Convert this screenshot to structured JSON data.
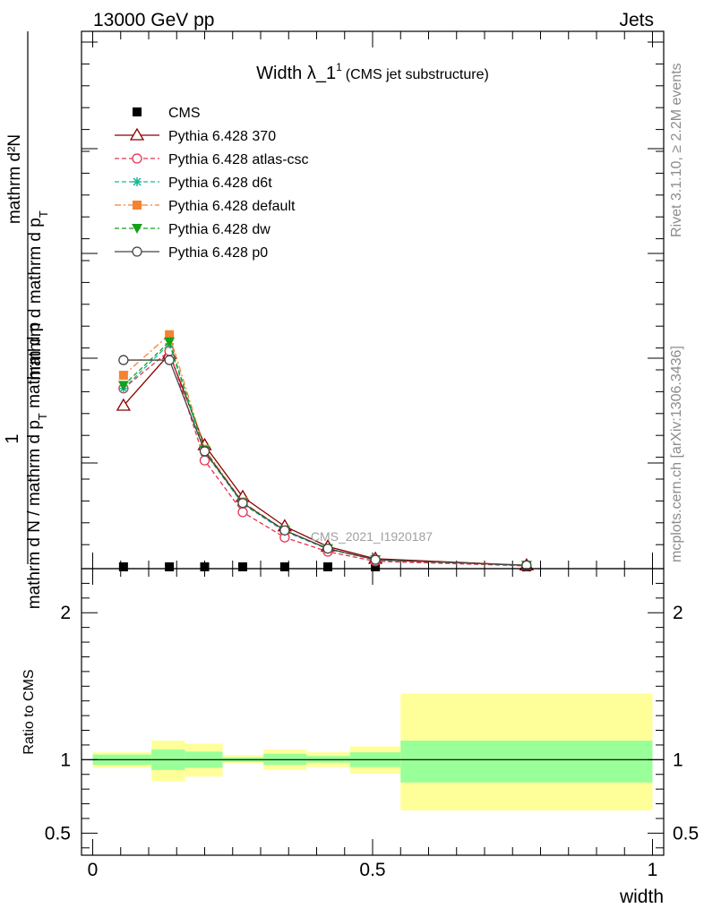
{
  "header": {
    "left": "13000 GeV pp",
    "right": "Jets"
  },
  "side_labels": {
    "rivet": "Rivet 3.1.10, ≥ 2.2M events",
    "mcplots": "mcplots.cern.ch [arXiv:1306.3436]"
  },
  "watermark": "CMS_2021_I1920187",
  "main_ylabel": {
    "numerator": "1",
    "numerator_note": "mathrm d²N",
    "denominator": "mathrm d N / mathrm d p",
    "denominator_sub": "T",
    "denominator_tail": " mathrm d p",
    "upper_fraction_note": "mathrm d p",
    "upper_fraction_sub": "T",
    "upper_fraction_tail": "mathrm d"
  },
  "ratio_ylabel": "Ratio to CMS",
  "xlabel": "width",
  "chart_data": [
    {
      "type": "line",
      "title": "Width λ_1",
      "title_sup": "1",
      "title_sub": "(CMS jet substructure)",
      "xlim": [
        -0.02,
        1.02
      ],
      "ylim": [
        0,
        1
      ],
      "x_ticks": [
        "0",
        "0.5",
        "1"
      ],
      "legend_position": "top-left",
      "x": [
        0.055,
        0.137,
        0.2,
        0.268,
        0.343,
        0.42,
        0.505,
        0.775
      ],
      "series": [
        {
          "name": "CMS",
          "marker": "square",
          "color": "#000000",
          "values": [
            0.0,
            0.0,
            0.0,
            0.0,
            0.0,
            0.0,
            0.0,
            0.0
          ]
        },
        {
          "name": "Pythia 6.428 370",
          "marker": "triangle-open",
          "color": "#8b0000",
          "dash": "solid",
          "values": [
            0.318,
            0.42,
            0.24,
            0.138,
            0.08,
            0.04,
            0.016,
            0.003
          ]
        },
        {
          "name": "Pythia 6.428 atlas-csc",
          "marker": "circle-open",
          "color": "#e8304f",
          "dash": "dashed",
          "values": [
            0.352,
            0.426,
            0.21,
            0.108,
            0.058,
            0.03,
            0.011,
            0.002
          ]
        },
        {
          "name": "Pythia 6.428 d6t",
          "marker": "star",
          "color": "#19b69b",
          "dash": "dashed",
          "values": [
            0.352,
            0.44,
            0.226,
            0.124,
            0.07,
            0.035,
            0.014,
            0.003
          ]
        },
        {
          "name": "Pythia 6.428 default",
          "marker": "square",
          "color": "#f58231",
          "dash": "dashdot",
          "values": [
            0.378,
            0.458,
            0.232,
            0.128,
            0.072,
            0.036,
            0.014,
            0.003
          ]
        },
        {
          "name": "Pythia 6.428 dw",
          "marker": "triangle-down",
          "color": "#18a018",
          "dash": "dashed",
          "values": [
            0.358,
            0.444,
            0.23,
            0.126,
            0.072,
            0.036,
            0.014,
            0.003
          ]
        },
        {
          "name": "Pythia 6.428 p0",
          "marker": "circle-open",
          "color": "#444444",
          "dash": "solid",
          "values": [
            0.408,
            0.408,
            0.228,
            0.126,
            0.072,
            0.036,
            0.014,
            0.003
          ]
        }
      ]
    },
    {
      "type": "area",
      "ylabel": "Ratio to CMS",
      "xlabel": "width",
      "xlim": [
        -0.02,
        1.02
      ],
      "ylim": [
        0.35,
        2.3
      ],
      "x_ticks": [
        "0",
        "0.5",
        "1"
      ],
      "y_ticks": [
        "0.5",
        "1",
        "2"
      ],
      "reference_line": 1,
      "bins": [
        {
          "x0": 0.0,
          "x1": 0.105,
          "stat_lo": 0.965,
          "stat_hi": 1.035,
          "tot_lo": 0.945,
          "tot_hi": 1.05
        },
        {
          "x0": 0.105,
          "x1": 0.165,
          "stat_lo": 0.93,
          "stat_hi": 1.07,
          "tot_lo": 0.855,
          "tot_hi": 1.13
        },
        {
          "x0": 0.165,
          "x1": 0.232,
          "stat_lo": 0.945,
          "stat_hi": 1.055,
          "tot_lo": 0.885,
          "tot_hi": 1.11
        },
        {
          "x0": 0.232,
          "x1": 0.305,
          "stat_lo": 0.985,
          "stat_hi": 1.015,
          "tot_lo": 0.975,
          "tot_hi": 1.03
        },
        {
          "x0": 0.305,
          "x1": 0.382,
          "stat_lo": 0.965,
          "stat_hi": 1.04,
          "tot_lo": 0.93,
          "tot_hi": 1.07
        },
        {
          "x0": 0.382,
          "x1": 0.46,
          "stat_lo": 0.98,
          "stat_hi": 1.025,
          "tot_lo": 0.95,
          "tot_hi": 1.05
        },
        {
          "x0": 0.46,
          "x1": 0.55,
          "stat_lo": 0.95,
          "stat_hi": 1.05,
          "tot_lo": 0.905,
          "tot_hi": 1.09
        },
        {
          "x0": 0.55,
          "x1": 1.0,
          "stat_lo": 0.845,
          "stat_hi": 1.13,
          "tot_lo": 0.655,
          "tot_hi": 1.45
        }
      ],
      "colors": {
        "stat": "#99ff99",
        "total": "#ffff99"
      }
    }
  ]
}
